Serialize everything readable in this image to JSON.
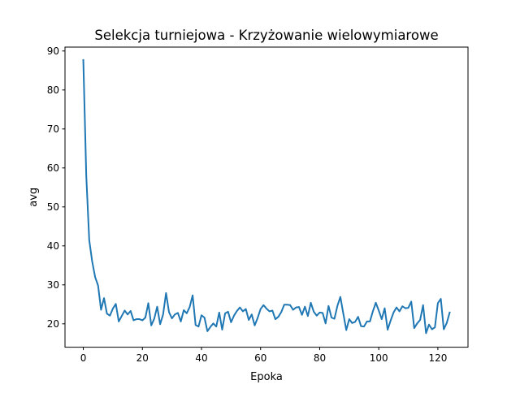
{
  "chart_data": {
    "type": "line",
    "title": "Selekcja turniejowa - Krzyżowanie wielowymiarowe",
    "xlabel": "Epoka",
    "ylabel": "avg",
    "xlim": [
      -6.2,
      130.2
    ],
    "ylim": [
      14.0,
      91.0
    ],
    "xticks": [
      0,
      20,
      40,
      60,
      80,
      100,
      120
    ],
    "yticks": [
      20,
      30,
      40,
      50,
      60,
      70,
      80,
      90
    ],
    "grid": false,
    "legend": "none",
    "colors": {
      "line": "#1f77b4"
    },
    "series": [
      {
        "x": [
          0,
          1,
          2,
          3,
          4,
          5,
          6,
          7,
          8,
          9,
          10,
          11,
          12,
          13,
          14,
          15,
          16,
          17,
          18,
          19,
          20,
          21,
          22,
          23,
          24,
          25,
          26,
          27,
          28,
          29,
          30,
          31,
          32,
          33,
          34,
          35,
          36,
          37,
          38,
          39,
          40,
          41,
          42,
          43,
          44,
          45,
          46,
          47,
          48,
          49,
          50,
          51,
          52,
          53,
          54,
          55,
          56,
          57,
          58,
          59,
          60,
          61,
          62,
          63,
          64,
          65,
          66,
          67,
          68,
          69,
          70,
          71,
          72,
          73,
          74,
          75,
          76,
          77,
          78,
          79,
          80,
          81,
          82,
          83,
          84,
          85,
          86,
          87,
          88,
          89,
          90,
          91,
          92,
          93,
          94,
          95,
          96,
          97,
          98,
          99,
          100,
          101,
          102,
          103,
          104,
          105,
          106,
          107,
          108,
          109,
          110,
          111,
          112,
          113,
          114,
          115,
          116,
          117,
          118,
          119,
          120,
          121,
          122,
          123,
          124
        ],
        "values": [
          87.7,
          58.0,
          41.5,
          36.0,
          32.0,
          29.8,
          23.6,
          26.6,
          22.6,
          22.1,
          23.9,
          25.1,
          20.6,
          22.0,
          23.4,
          22.4,
          23.3,
          20.9,
          21.2,
          21.2,
          20.9,
          21.6,
          25.3,
          19.6,
          21.3,
          24.4,
          19.9,
          22.4,
          27.9,
          23.0,
          21.4,
          22.4,
          22.8,
          20.6,
          23.5,
          22.7,
          24.3,
          27.3,
          19.7,
          19.3,
          22.2,
          21.6,
          18.1,
          19.2,
          20.1,
          19.3,
          22.9,
          18.5,
          22.7,
          23.1,
          20.4,
          22.1,
          23.3,
          24.2,
          23.2,
          23.8,
          21.0,
          22.4,
          19.6,
          21.5,
          23.8,
          24.8,
          23.9,
          23.2,
          23.4,
          21.2,
          21.8,
          23.0,
          24.9,
          24.9,
          24.8,
          23.6,
          24.2,
          24.3,
          22.3,
          24.4,
          22.0,
          25.4,
          23.1,
          22.1,
          22.9,
          22.8,
          20.1,
          24.6,
          21.6,
          21.3,
          24.6,
          26.9,
          22.6,
          18.4,
          21.2,
          20.2,
          20.5,
          21.8,
          19.4,
          19.3,
          20.6,
          20.6,
          23.2,
          25.4,
          23.4,
          21.2,
          24.0,
          18.5,
          20.8,
          22.9,
          24.2,
          23.2,
          24.5,
          24.0,
          24.1,
          25.7,
          18.9,
          20.1,
          21.0,
          24.8,
          17.6,
          19.8,
          18.6,
          19.1,
          25.3,
          26.4,
          18.6,
          20.2,
          22.9
        ]
      }
    ]
  }
}
